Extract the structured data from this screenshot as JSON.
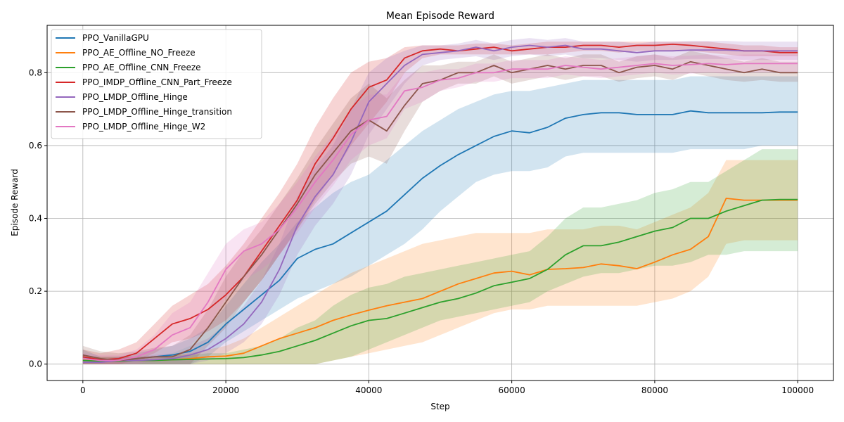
{
  "chart_data": {
    "type": "line",
    "title": "Mean Episode Reward",
    "xlabel": "Step",
    "ylabel": "Episode Reward",
    "xlim": [
      -5000,
      105000
    ],
    "ylim": [
      -0.045,
      0.93
    ],
    "xticks": [
      0,
      20000,
      40000,
      60000,
      80000,
      100000
    ],
    "xtick_labels": [
      "0",
      "20000",
      "40000",
      "60000",
      "80000",
      "100000"
    ],
    "yticks": [
      0.0,
      0.2,
      0.4,
      0.6,
      0.8
    ],
    "ytick_labels": [
      "0.0",
      "0.2",
      "0.4",
      "0.6",
      "0.8"
    ],
    "grid": true,
    "legend_position": "top-left",
    "x": [
      0,
      2500,
      5000,
      7500,
      10000,
      12500,
      15000,
      17500,
      20000,
      22500,
      25000,
      27500,
      30000,
      32500,
      35000,
      37500,
      40000,
      42500,
      45000,
      47500,
      50000,
      52500,
      55000,
      57500,
      60000,
      62500,
      65000,
      67500,
      70000,
      72500,
      75000,
      77500,
      80000,
      82500,
      85000,
      87500,
      90000,
      92500,
      95000,
      97500,
      100000
    ],
    "series": [
      {
        "name": "PPO_VanillaGPU",
        "color": "#1f77b4",
        "values": [
          0.02,
          0.01,
          0.01,
          0.015,
          0.02,
          0.025,
          0.035,
          0.06,
          0.11,
          0.15,
          0.19,
          0.23,
          0.29,
          0.315,
          0.33,
          0.36,
          0.39,
          0.42,
          0.465,
          0.51,
          0.545,
          0.575,
          0.6,
          0.625,
          0.64,
          0.635,
          0.65,
          0.675,
          0.685,
          0.69,
          0.69,
          0.685,
          0.685,
          0.685,
          0.695,
          0.69,
          0.69,
          0.69,
          0.69,
          0.692,
          0.692
        ],
        "lower": [
          0.0,
          0.0,
          0.0,
          0.0,
          0.0,
          0.0,
          0.0,
          0.02,
          0.06,
          0.09,
          0.12,
          0.15,
          0.18,
          0.2,
          0.22,
          0.24,
          0.27,
          0.3,
          0.33,
          0.37,
          0.42,
          0.46,
          0.5,
          0.52,
          0.53,
          0.53,
          0.54,
          0.57,
          0.58,
          0.58,
          0.58,
          0.58,
          0.58,
          0.58,
          0.59,
          0.59,
          0.59,
          0.59,
          0.6,
          0.6,
          0.6
        ],
        "upper": [
          0.04,
          0.02,
          0.02,
          0.03,
          0.04,
          0.05,
          0.07,
          0.1,
          0.16,
          0.22,
          0.28,
          0.33,
          0.39,
          0.43,
          0.47,
          0.5,
          0.52,
          0.56,
          0.6,
          0.64,
          0.67,
          0.7,
          0.72,
          0.74,
          0.75,
          0.75,
          0.76,
          0.77,
          0.78,
          0.78,
          0.78,
          0.78,
          0.78,
          0.78,
          0.79,
          0.79,
          0.79,
          0.79,
          0.79,
          0.79,
          0.79
        ]
      },
      {
        "name": "PPO_AE_Offline_NO_Freeze",
        "color": "#ff7f0e",
        "values": [
          0.01,
          0.01,
          0.01,
          0.01,
          0.01,
          0.012,
          0.015,
          0.02,
          0.022,
          0.03,
          0.05,
          0.07,
          0.085,
          0.1,
          0.12,
          0.135,
          0.148,
          0.16,
          0.17,
          0.18,
          0.2,
          0.22,
          0.235,
          0.25,
          0.255,
          0.245,
          0.26,
          0.262,
          0.265,
          0.275,
          0.27,
          0.262,
          0.28,
          0.3,
          0.315,
          0.35,
          0.455,
          0.45,
          0.45,
          0.45,
          0.45
        ],
        "lower": [
          0.0,
          0.0,
          0.0,
          0.0,
          0.0,
          0.0,
          0.0,
          0.0,
          0.0,
          0.0,
          0.0,
          0.0,
          0.0,
          0.0,
          0.01,
          0.02,
          0.03,
          0.04,
          0.05,
          0.06,
          0.08,
          0.1,
          0.12,
          0.14,
          0.15,
          0.15,
          0.16,
          0.16,
          0.16,
          0.16,
          0.16,
          0.16,
          0.17,
          0.18,
          0.2,
          0.24,
          0.33,
          0.34,
          0.34,
          0.34,
          0.34
        ],
        "upper": [
          0.02,
          0.02,
          0.02,
          0.02,
          0.02,
          0.025,
          0.03,
          0.04,
          0.05,
          0.07,
          0.1,
          0.13,
          0.16,
          0.19,
          0.22,
          0.25,
          0.27,
          0.29,
          0.31,
          0.33,
          0.34,
          0.35,
          0.36,
          0.36,
          0.36,
          0.36,
          0.37,
          0.37,
          0.37,
          0.38,
          0.38,
          0.37,
          0.39,
          0.41,
          0.43,
          0.47,
          0.56,
          0.56,
          0.56,
          0.56,
          0.56
        ]
      },
      {
        "name": "PPO_AE_Offline_CNN_Freeze",
        "color": "#2ca02c",
        "values": [
          0.01,
          0.008,
          0.008,
          0.01,
          0.01,
          0.012,
          0.013,
          0.014,
          0.015,
          0.018,
          0.025,
          0.035,
          0.05,
          0.065,
          0.085,
          0.105,
          0.12,
          0.125,
          0.14,
          0.155,
          0.17,
          0.18,
          0.195,
          0.215,
          0.225,
          0.235,
          0.26,
          0.3,
          0.325,
          0.325,
          0.335,
          0.35,
          0.365,
          0.375,
          0.4,
          0.4,
          0.42,
          0.435,
          0.45,
          0.452,
          0.452
        ],
        "lower": [
          0.0,
          0.0,
          0.0,
          0.0,
          0.0,
          0.0,
          0.0,
          0.0,
          0.0,
          0.0,
          0.0,
          0.0,
          0.0,
          0.0,
          0.01,
          0.02,
          0.04,
          0.06,
          0.08,
          0.1,
          0.12,
          0.13,
          0.14,
          0.15,
          0.16,
          0.17,
          0.2,
          0.22,
          0.24,
          0.25,
          0.25,
          0.26,
          0.27,
          0.27,
          0.28,
          0.3,
          0.3,
          0.31,
          0.31,
          0.31,
          0.31
        ],
        "upper": [
          0.02,
          0.02,
          0.02,
          0.02,
          0.02,
          0.025,
          0.025,
          0.03,
          0.03,
          0.04,
          0.05,
          0.07,
          0.1,
          0.12,
          0.16,
          0.19,
          0.21,
          0.22,
          0.24,
          0.25,
          0.26,
          0.27,
          0.28,
          0.29,
          0.3,
          0.31,
          0.35,
          0.4,
          0.43,
          0.43,
          0.44,
          0.45,
          0.47,
          0.48,
          0.5,
          0.5,
          0.53,
          0.56,
          0.59,
          0.59,
          0.59
        ]
      },
      {
        "name": "PPO_IMDP_Offline_CNN_Part_Freeze",
        "color": "#d62728",
        "values": [
          0.02,
          0.012,
          0.015,
          0.03,
          0.07,
          0.11,
          0.125,
          0.15,
          0.19,
          0.24,
          0.31,
          0.38,
          0.45,
          0.55,
          0.62,
          0.7,
          0.76,
          0.78,
          0.84,
          0.86,
          0.865,
          0.86,
          0.865,
          0.87,
          0.86,
          0.865,
          0.87,
          0.87,
          0.875,
          0.875,
          0.87,
          0.875,
          0.875,
          0.878,
          0.875,
          0.87,
          0.865,
          0.86,
          0.86,
          0.855,
          0.855
        ],
        "lower": [
          0.0,
          0.0,
          0.0,
          0.01,
          0.03,
          0.06,
          0.07,
          0.09,
          0.12,
          0.17,
          0.23,
          0.3,
          0.37,
          0.45,
          0.52,
          0.6,
          0.66,
          0.72,
          0.8,
          0.84,
          0.85,
          0.85,
          0.85,
          0.85,
          0.85,
          0.85,
          0.85,
          0.855,
          0.86,
          0.86,
          0.855,
          0.86,
          0.86,
          0.86,
          0.86,
          0.855,
          0.85,
          0.845,
          0.845,
          0.845,
          0.845
        ],
        "upper": [
          0.04,
          0.03,
          0.04,
          0.06,
          0.11,
          0.16,
          0.19,
          0.22,
          0.27,
          0.33,
          0.4,
          0.47,
          0.55,
          0.65,
          0.73,
          0.8,
          0.83,
          0.84,
          0.87,
          0.875,
          0.875,
          0.875,
          0.88,
          0.88,
          0.875,
          0.88,
          0.885,
          0.885,
          0.885,
          0.885,
          0.885,
          0.885,
          0.885,
          0.885,
          0.885,
          0.885,
          0.88,
          0.875,
          0.875,
          0.87,
          0.87
        ]
      },
      {
        "name": "PPO_LMDP_Offline_Hinge",
        "color": "#9467bd",
        "values": [
          0.005,
          0.005,
          0.01,
          0.01,
          0.012,
          0.015,
          0.025,
          0.04,
          0.07,
          0.11,
          0.17,
          0.26,
          0.38,
          0.46,
          0.52,
          0.61,
          0.72,
          0.77,
          0.82,
          0.85,
          0.855,
          0.86,
          0.87,
          0.86,
          0.87,
          0.875,
          0.87,
          0.875,
          0.865,
          0.865,
          0.86,
          0.855,
          0.86,
          0.86,
          0.862,
          0.862,
          0.862,
          0.86,
          0.86,
          0.86,
          0.86
        ],
        "lower": [
          0.0,
          0.0,
          0.0,
          0.0,
          0.0,
          0.0,
          0.0,
          0.01,
          0.03,
          0.06,
          0.11,
          0.19,
          0.3,
          0.38,
          0.44,
          0.52,
          0.63,
          0.7,
          0.77,
          0.82,
          0.835,
          0.84,
          0.845,
          0.835,
          0.845,
          0.85,
          0.845,
          0.85,
          0.84,
          0.84,
          0.835,
          0.83,
          0.835,
          0.835,
          0.838,
          0.838,
          0.838,
          0.835,
          0.835,
          0.835,
          0.835
        ],
        "upper": [
          0.01,
          0.01,
          0.02,
          0.02,
          0.025,
          0.03,
          0.05,
          0.07,
          0.11,
          0.16,
          0.23,
          0.33,
          0.46,
          0.54,
          0.6,
          0.7,
          0.8,
          0.84,
          0.86,
          0.875,
          0.875,
          0.88,
          0.89,
          0.88,
          0.89,
          0.895,
          0.89,
          0.895,
          0.885,
          0.885,
          0.885,
          0.88,
          0.885,
          0.885,
          0.887,
          0.887,
          0.887,
          0.885,
          0.885,
          0.885,
          0.885
        ]
      },
      {
        "name": "PPO_LMDP_Offline_Hinge_transition",
        "color": "#8c564b",
        "values": [
          0.025,
          0.015,
          0.01,
          0.015,
          0.02,
          0.02,
          0.04,
          0.1,
          0.17,
          0.24,
          0.3,
          0.37,
          0.44,
          0.52,
          0.58,
          0.64,
          0.67,
          0.64,
          0.71,
          0.77,
          0.78,
          0.8,
          0.8,
          0.82,
          0.8,
          0.81,
          0.82,
          0.81,
          0.82,
          0.82,
          0.8,
          0.815,
          0.82,
          0.81,
          0.83,
          0.82,
          0.81,
          0.8,
          0.81,
          0.8,
          0.8
        ],
        "lower": [
          0.0,
          0.0,
          0.0,
          0.0,
          0.0,
          0.0,
          0.0,
          0.05,
          0.1,
          0.17,
          0.23,
          0.3,
          0.37,
          0.44,
          0.5,
          0.55,
          0.57,
          0.55,
          0.64,
          0.72,
          0.75,
          0.77,
          0.77,
          0.79,
          0.77,
          0.78,
          0.79,
          0.78,
          0.79,
          0.79,
          0.775,
          0.785,
          0.79,
          0.78,
          0.8,
          0.79,
          0.78,
          0.775,
          0.78,
          0.775,
          0.775
        ],
        "upper": [
          0.05,
          0.035,
          0.03,
          0.035,
          0.045,
          0.05,
          0.08,
          0.15,
          0.24,
          0.31,
          0.37,
          0.44,
          0.51,
          0.59,
          0.66,
          0.73,
          0.77,
          0.73,
          0.78,
          0.82,
          0.82,
          0.83,
          0.83,
          0.85,
          0.83,
          0.84,
          0.85,
          0.84,
          0.85,
          0.85,
          0.83,
          0.845,
          0.85,
          0.84,
          0.86,
          0.85,
          0.84,
          0.83,
          0.84,
          0.83,
          0.83
        ]
      },
      {
        "name": "PPO_LMDP_Offline_Hinge_W2",
        "color": "#e377c2",
        "values": [
          0.015,
          0.01,
          0.01,
          0.02,
          0.04,
          0.08,
          0.1,
          0.17,
          0.26,
          0.31,
          0.33,
          0.37,
          0.43,
          0.5,
          0.56,
          0.63,
          0.67,
          0.68,
          0.75,
          0.76,
          0.78,
          0.785,
          0.8,
          0.8,
          0.81,
          0.81,
          0.81,
          0.82,
          0.815,
          0.81,
          0.815,
          0.82,
          0.825,
          0.82,
          0.822,
          0.825,
          0.822,
          0.825,
          0.825,
          0.825,
          0.825
        ],
        "lower": [
          0.0,
          0.0,
          0.0,
          0.0,
          0.01,
          0.03,
          0.05,
          0.1,
          0.18,
          0.23,
          0.26,
          0.3,
          0.36,
          0.43,
          0.49,
          0.56,
          0.6,
          0.62,
          0.7,
          0.72,
          0.75,
          0.76,
          0.775,
          0.775,
          0.785,
          0.785,
          0.785,
          0.795,
          0.79,
          0.785,
          0.79,
          0.795,
          0.8,
          0.795,
          0.797,
          0.8,
          0.797,
          0.8,
          0.8,
          0.8,
          0.8
        ],
        "upper": [
          0.03,
          0.025,
          0.025,
          0.04,
          0.08,
          0.14,
          0.17,
          0.25,
          0.33,
          0.37,
          0.39,
          0.44,
          0.5,
          0.57,
          0.63,
          0.7,
          0.74,
          0.74,
          0.8,
          0.8,
          0.81,
          0.81,
          0.825,
          0.825,
          0.835,
          0.835,
          0.835,
          0.845,
          0.84,
          0.835,
          0.84,
          0.845,
          0.85,
          0.845,
          0.847,
          0.85,
          0.847,
          0.85,
          0.85,
          0.85,
          0.85
        ]
      }
    ]
  }
}
